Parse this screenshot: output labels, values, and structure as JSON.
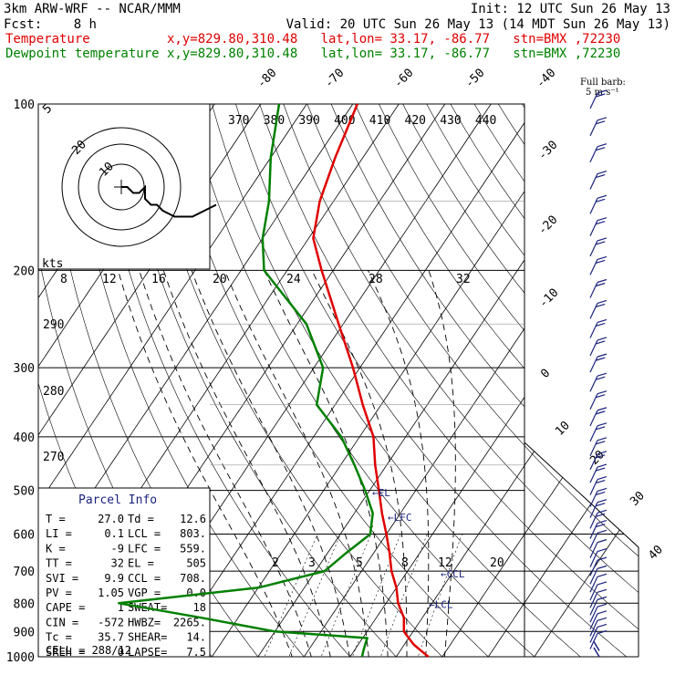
{
  "header": {
    "model": "3km ARW-WRF -- NCAR/MMM",
    "init": "Init: 12 UTC Sun 26 May 13",
    "fcst_label": "Fcst:",
    "fcst_value": "8 h",
    "valid": "Valid: 20 UTC Sun 26 May 13 (14 MDT Sun 26 May 13)",
    "temp_line": "Temperature          x,y=829.80,310.48   lat,lon= 33.17, -86.77   stn=BMX ,72230",
    "dew_line": "Dewpoint temperature x,y=829.80,310.48   lat,lon= 33.17, -86.77   stn=BMX ,72230",
    "full_barb_1": "Full barb:",
    "full_barb_2": "5 m s⁻¹"
  },
  "colors": {
    "temperature": "#e00000",
    "dewpoint": "#008000",
    "barbs": "#1a237e",
    "parcel": "#000000"
  },
  "chart_data": {
    "type": "skew-t",
    "yaxis": "pressure (hPa), log",
    "ylim": [
      1000,
      100
    ],
    "pressure_labels": [
      "100",
      "200",
      "300",
      "400",
      "500",
      "600",
      "700",
      "800",
      "900",
      "1000"
    ],
    "isotherm_labels": [
      "-80",
      "-70",
      "-60",
      "-50",
      "-40",
      "-30",
      "-20",
      "-10",
      "0",
      "10",
      "20",
      "30",
      "40"
    ],
    "theta_labels": [
      "370",
      "380",
      "390",
      "400",
      "410",
      "420",
      "430",
      "440"
    ],
    "theta_side_labels": [
      "290",
      "280",
      "270"
    ],
    "mixing_ratio_labels": [
      "2",
      "3",
      "5",
      "8",
      "12",
      "20"
    ],
    "hodo_speed_labels": [
      "8",
      "12",
      "16",
      "20",
      "24",
      "28",
      "32"
    ],
    "hodo_ring_labels": [
      "5",
      "10",
      "20"
    ],
    "kts_label": "kts",
    "temperature": {
      "name": "Temperature",
      "p": [
        1000,
        975,
        950,
        925,
        900,
        850,
        800,
        750,
        700,
        650,
        600,
        550,
        500,
        450,
        400,
        350,
        300,
        250,
        200,
        175,
        150,
        125,
        100
      ],
      "t": [
        27.0,
        24.5,
        22.0,
        20.0,
        18.0,
        16.0,
        12.6,
        10.0,
        6.5,
        3.5,
        0.0,
        -4.0,
        -8.0,
        -12.5,
        -17.0,
        -24.0,
        -31.5,
        -41.0,
        -52.5,
        -59.0,
        -63.0,
        -66.0,
        -69.0
      ]
    },
    "dewpoint": {
      "name": "Dewpoint temperature",
      "p": [
        1000,
        975,
        950,
        925,
        900,
        850,
        800,
        750,
        700,
        650,
        600,
        550,
        500,
        450,
        400,
        350,
        300,
        250,
        200,
        175,
        150,
        125,
        100
      ],
      "t": [
        12.6,
        12.0,
        11.5,
        11.0,
        -10.0,
        -28.0,
        -48.0,
        -20.0,
        -8.0,
        -6.0,
        -3.5,
        -6.0,
        -11.0,
        -17.0,
        -24.0,
        -34.0,
        -38.0,
        -48.0,
        -65.0,
        -70.0,
        -74.0,
        -80.0,
        -86.0
      ]
    },
    "levels": [
      {
        "label": "EL",
        "p": 505
      },
      {
        "label": "LFC",
        "p": 559
      },
      {
        "label": "CCL",
        "p": 708
      },
      {
        "label": "LCL",
        "p": 803
      }
    ],
    "hodograph": {
      "u": [
        0,
        1,
        2,
        3,
        4,
        4,
        5,
        6,
        7,
        9,
        12,
        14,
        16
      ],
      "v": [
        0,
        0,
        -1,
        -1,
        0,
        -2,
        -3,
        -3,
        -4,
        -5,
        -5,
        -4,
        -3
      ]
    },
    "wind_profile_p": [
      1000,
      975,
      950,
      925,
      900,
      875,
      850,
      825,
      800,
      775,
      750,
      725,
      700,
      675,
      650,
      625,
      600,
      575,
      550,
      525,
      500,
      475,
      450,
      425,
      400,
      375,
      350,
      325,
      300,
      280,
      260,
      240,
      220,
      200,
      185,
      170,
      155,
      140,
      125,
      112,
      100
    ]
  },
  "parcel": {
    "title": "Parcel Info",
    "rows": [
      [
        "T  =",
        "27.0",
        "Td =",
        "12.6"
      ],
      [
        "LI =",
        "0.1",
        "LCL =",
        "803."
      ],
      [
        "K  =",
        "-9",
        "LFC =",
        "559."
      ],
      [
        "TT =",
        "32",
        "EL  =",
        "505"
      ],
      [
        "SVI =",
        "9.9",
        "CCL =",
        "708."
      ],
      [
        "PV =",
        "1.05",
        "VGP =",
        "0.0"
      ],
      [
        "CAPE =",
        "1",
        "SWEAT=",
        "18"
      ],
      [
        "CIN =",
        "-572",
        "HWBZ=",
        "2265."
      ],
      [
        "Tc =",
        "35.7",
        "SHEAR=",
        "14."
      ],
      [
        "SREH =",
        "0",
        "LAPSE=",
        "7.5"
      ]
    ],
    "cell": "CELL = 288/12"
  }
}
